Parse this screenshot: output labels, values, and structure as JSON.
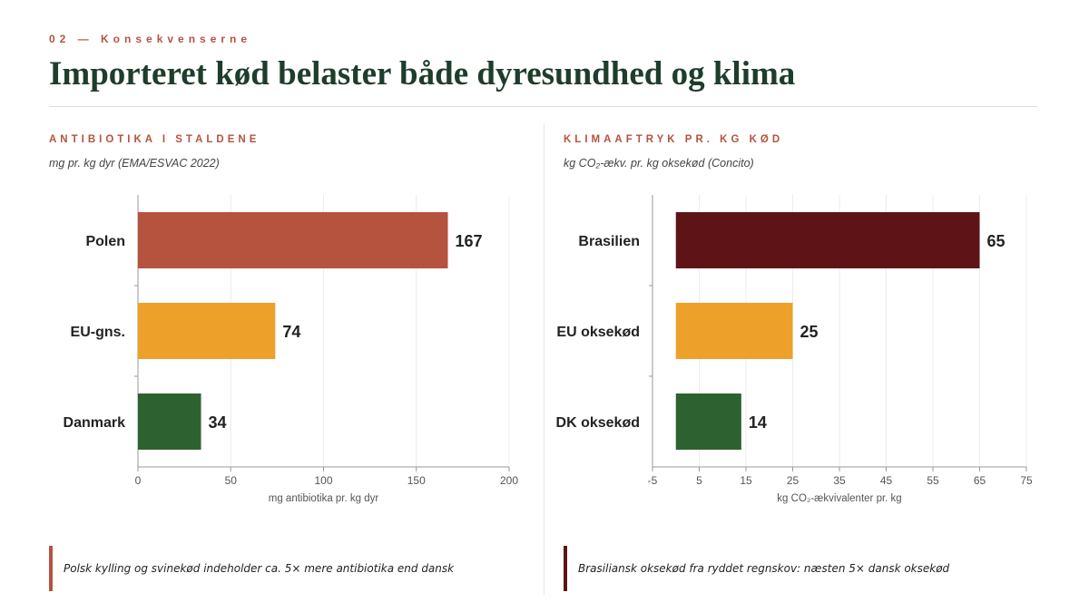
{
  "header": {
    "eyebrow": "02 — Konsekvenserne",
    "title": "Importeret kød belaster både dyresundhed og klima"
  },
  "colors": {
    "accent": "#b5533f",
    "title": "#1e3d2b",
    "poland": "#b5533f",
    "eu": "#eda02a",
    "denmark": "#2d6230",
    "brazil": "#5e1416"
  },
  "left_panel": {
    "heading": "ANTIBIOTIKA I STALDENE",
    "subtitle": "mg pr. kg dyr (EMA/ESVAC 2022)",
    "note": "Polsk kylling og svinekød indeholder ca. 5× mere antibiotika end dansk",
    "note_color": "#b5533f"
  },
  "right_panel": {
    "heading": "KLIMAAFTRYK PR. KG KØD",
    "subtitle": "kg CO₂-ækv. pr. kg oksekød (Concito)",
    "note": "Brasiliansk oksekød fra ryddet regnskov: næsten 5× dansk oksekød",
    "note_color": "#5e1416"
  },
  "chart_data": [
    {
      "type": "bar",
      "orientation": "horizontal",
      "categories": [
        "Polen",
        "EU-gns.",
        "Danmark"
      ],
      "values": [
        167,
        74,
        34
      ],
      "colors": [
        "#b5533f",
        "#eda02a",
        "#2d6230"
      ],
      "xlabel": "mg antibiotika pr. kg dyr",
      "xlim": [
        0,
        200
      ],
      "xticks": [
        0,
        50,
        100,
        150,
        200
      ],
      "grid": "vertical"
    },
    {
      "type": "bar",
      "orientation": "horizontal",
      "categories": [
        "Brasilien",
        "EU oksekød",
        "DK oksekød"
      ],
      "values": [
        65,
        25,
        14
      ],
      "colors": [
        "#5e1416",
        "#eda02a",
        "#2d6230"
      ],
      "xlabel": "kg CO₂-ækvivalenter pr. kg",
      "xlim": [
        -5,
        75
      ],
      "xticks": [
        -5,
        5,
        15,
        25,
        35,
        45,
        55,
        65,
        75
      ],
      "grid": "vertical"
    }
  ]
}
